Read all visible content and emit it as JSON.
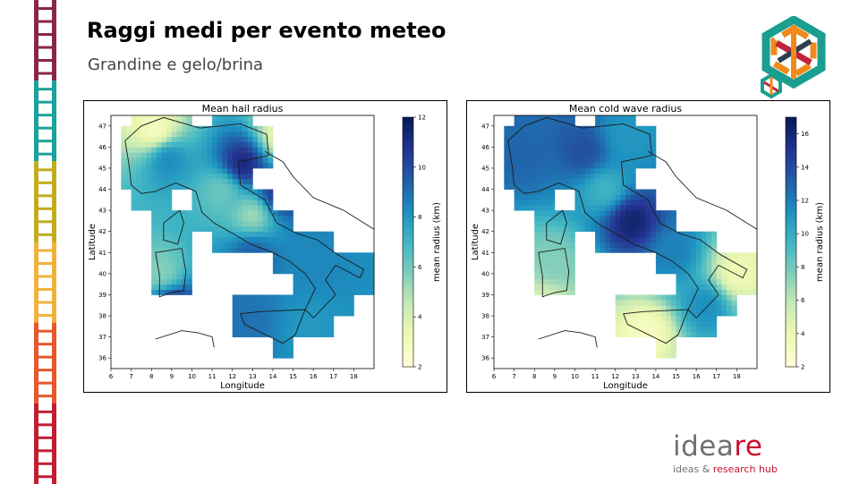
{
  "slide": {
    "title": "Raggi medi per evento meteo",
    "subtitle": "Grandine e gelo/brina"
  },
  "brand": {
    "name_main": "idea",
    "name_accent": "re",
    "tagline_main": "ideas & ",
    "tagline_accent": "research hub"
  },
  "decor": {
    "ladder_colors": [
      "#8b2746",
      "#1aa39a",
      "#c3ac1c",
      "#f3b13a",
      "#e8582a",
      "#c11e32"
    ],
    "logo_colors": [
      "#f08a1c",
      "#1a9e8f",
      "#c0233b",
      "#2c3e50"
    ]
  },
  "chart_data": [
    {
      "type": "heatmap",
      "title": "Mean hail radius",
      "xlabel": "Longitude",
      "ylabel": "Latitude",
      "xlim": [
        6,
        19
      ],
      "ylim": [
        35.5,
        47.5
      ],
      "x_ticks": [
        "6",
        "7",
        "8",
        "9",
        "10",
        "11",
        "12",
        "13",
        "14",
        "15",
        "16",
        "17",
        "18"
      ],
      "y_ticks": [
        "36",
        "37",
        "38",
        "39",
        "40",
        "41",
        "42",
        "43",
        "44",
        "45",
        "46",
        "47"
      ],
      "colorbar_label": "mean radius (km)",
      "colorbar_range": [
        2,
        12
      ],
      "colorbar_ticks": [
        "2",
        "4",
        "6",
        "8",
        "10",
        "12"
      ],
      "colormap": "YlGnBu",
      "grid_cell_deg": 1.0,
      "hotspots": [
        {
          "lon": 12.5,
          "lat": 45.2,
          "value": 11.5
        },
        {
          "lon": 14.3,
          "lat": 43.8,
          "value": 11.0
        },
        {
          "lon": 9.0,
          "lat": 38.5,
          "value": 11.0
        },
        {
          "lon": 8.8,
          "lat": 45.5,
          "value": 8.5
        },
        {
          "lon": 12.8,
          "lat": 37.8,
          "value": 9.0
        },
        {
          "lon": 13.0,
          "lat": 41.0,
          "value": 9.5
        },
        {
          "lon": 16.2,
          "lat": 40.5,
          "value": 8.5
        },
        {
          "lon": 15.8,
          "lat": 37.5,
          "value": 8.0
        },
        {
          "lon": 13.0,
          "lat": 42.8,
          "value": 5.0
        },
        {
          "lon": 8.5,
          "lat": 40.0,
          "value": 5.5
        },
        {
          "lon": 8.2,
          "lat": 46.8,
          "value": 2.5
        },
        {
          "lon": 14.5,
          "lat": 46.5,
          "value": 3.0
        },
        {
          "lon": 11.5,
          "lat": 44.0,
          "value": 6.0
        }
      ]
    },
    {
      "type": "heatmap",
      "title": "Mean cold wave radius",
      "xlabel": "Longitude",
      "ylabel": "Latitude",
      "xlim": [
        6,
        19
      ],
      "ylim": [
        35.5,
        47.5
      ],
      "x_ticks": [
        "6",
        "7",
        "8",
        "9",
        "10",
        "11",
        "12",
        "13",
        "14",
        "15",
        "16",
        "17",
        "18"
      ],
      "y_ticks": [
        "36",
        "37",
        "38",
        "39",
        "40",
        "41",
        "42",
        "43",
        "44",
        "45",
        "46",
        "47"
      ],
      "colorbar_label": "mean radius (km)",
      "colorbar_range": [
        2,
        17
      ],
      "colorbar_ticks": [
        "2",
        "4",
        "6",
        "8",
        "10",
        "12",
        "14",
        "16"
      ],
      "colormap": "YlGnBu",
      "grid_cell_deg": 1.0,
      "hotspots": [
        {
          "lon": 12.8,
          "lat": 42.5,
          "value": 16.5
        },
        {
          "lon": 7.5,
          "lat": 45.5,
          "value": 13.0
        },
        {
          "lon": 10.5,
          "lat": 45.8,
          "value": 14.0
        },
        {
          "lon": 12.5,
          "lat": 46.5,
          "value": 11.0
        },
        {
          "lon": 14.8,
          "lat": 41.0,
          "value": 12.0
        },
        {
          "lon": 16.5,
          "lat": 38.5,
          "value": 11.5
        },
        {
          "lon": 9.0,
          "lat": 40.5,
          "value": 7.5
        },
        {
          "lon": 13.5,
          "lat": 37.3,
          "value": 3.0
        },
        {
          "lon": 18.0,
          "lat": 40.0,
          "value": 3.5
        },
        {
          "lon": 8.5,
          "lat": 38.5,
          "value": 5.0
        },
        {
          "lon": 11.5,
          "lat": 44.0,
          "value": 9.5
        }
      ]
    }
  ]
}
